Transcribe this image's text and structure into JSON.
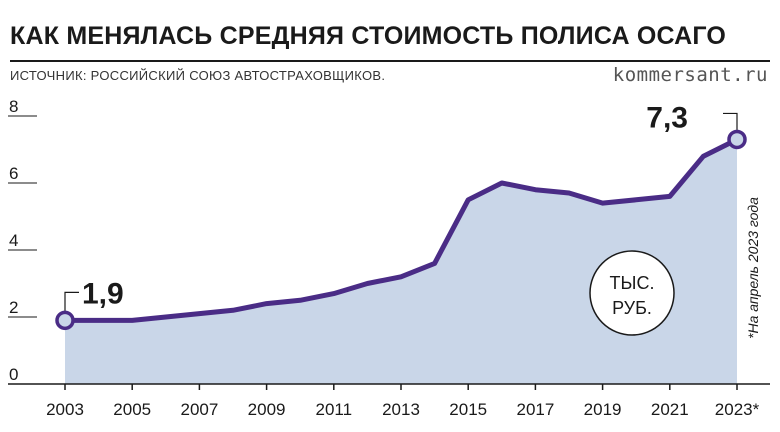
{
  "header": {
    "title": "КАК МЕНЯЛАСЬ СРЕДНЯЯ СТОИМОСТЬ ПОЛИСА ОСАГО",
    "source": "ИСТОЧНИК: РОССИЙСКИЙ СОЮЗ АВТОСТРАХОВЩИКОВ.",
    "brand": "kommersant.ru"
  },
  "chart_data": {
    "type": "area",
    "x": [
      2003,
      2004,
      2005,
      2006,
      2007,
      2008,
      2009,
      2010,
      2011,
      2012,
      2013,
      2014,
      2015,
      2016,
      2017,
      2018,
      2019,
      2020,
      2021,
      2022,
      2023
    ],
    "series": [
      {
        "values": [
          1.9,
          1.9,
          1.9,
          2.0,
          2.1,
          2.2,
          2.4,
          2.5,
          2.7,
          3.0,
          3.2,
          3.6,
          5.5,
          6.0,
          5.8,
          5.7,
          5.4,
          5.5,
          5.6,
          6.8,
          7.3
        ]
      }
    ],
    "ylim": [
      0,
      8
    ],
    "yticks": [
      "0",
      "2",
      "4",
      "6",
      "8"
    ],
    "xticks": [
      "2003",
      "2005",
      "2007",
      "2009",
      "2011",
      "2013",
      "2015",
      "2017",
      "2019",
      "2021",
      "2023*"
    ],
    "xtick_years": [
      2003,
      2005,
      2007,
      2009,
      2011,
      2013,
      2015,
      2017,
      2019,
      2021,
      2023
    ],
    "annotations": [
      {
        "x": 2003,
        "y": 1.9,
        "text": "1,9"
      },
      {
        "x": 2023,
        "y": 7.3,
        "text": "7,3"
      }
    ],
    "unit_line1": "ТЫС.",
    "unit_line2": "РУБ.",
    "footnote": "*На апрель 2023 года",
    "colors": {
      "line": "#4a2c86",
      "fill": "#c9d6e8",
      "grid": "#1a1a1a",
      "marker_fill": "#c9d6e8"
    }
  }
}
